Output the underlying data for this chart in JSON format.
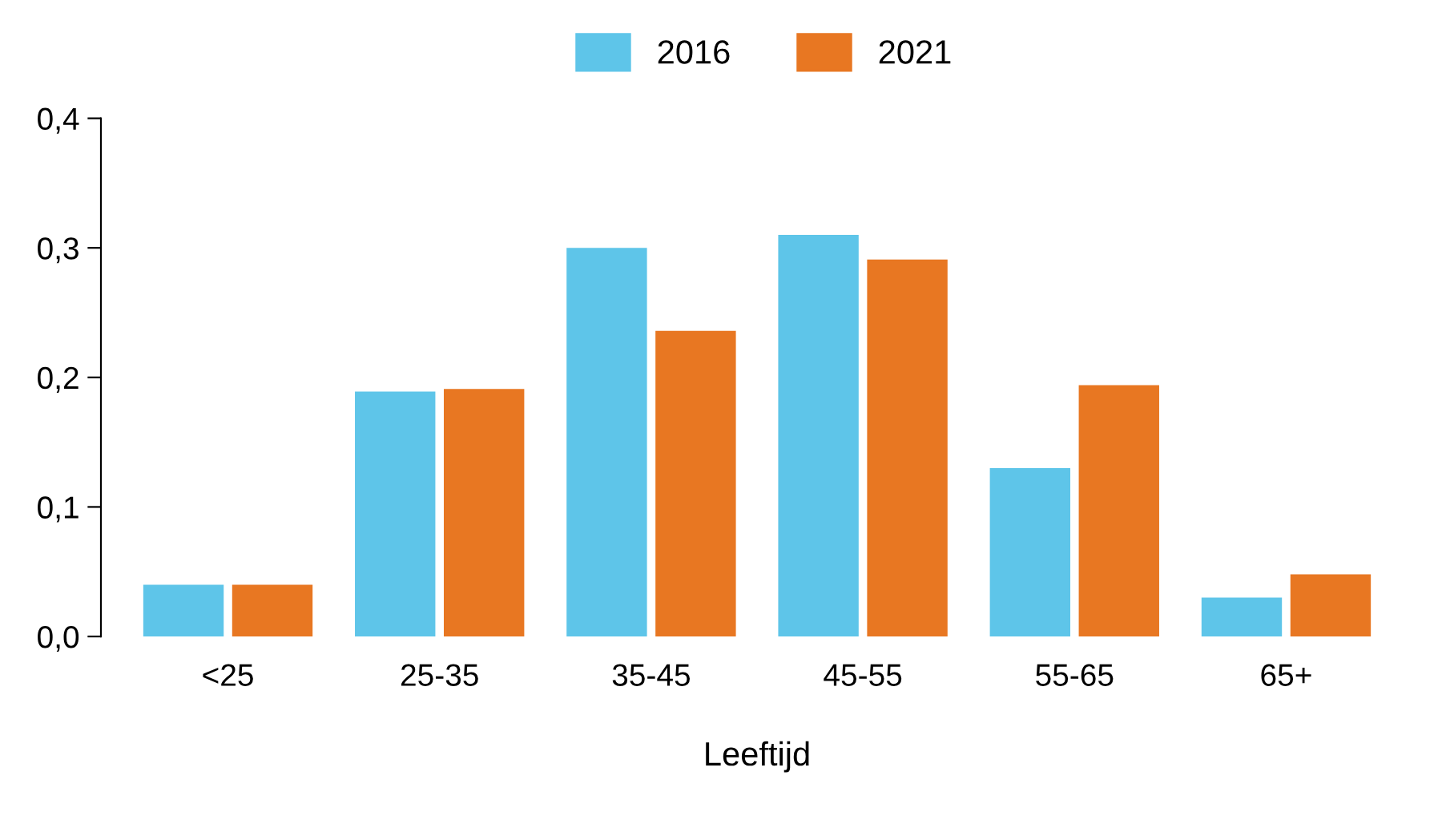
{
  "chart_data": {
    "type": "bar",
    "xlabel": "Leeftijd",
    "categories": [
      "<25",
      "25-35",
      "35-45",
      "45-55",
      "55-65",
      "65+"
    ],
    "series": [
      {
        "name": "2016",
        "color": "#5ec5e9",
        "values": [
          0.04,
          0.189,
          0.3,
          0.31,
          0.13,
          0.03
        ]
      },
      {
        "name": "2021",
        "color": "#e87722",
        "values": [
          0.04,
          0.191,
          0.236,
          0.291,
          0.194,
          0.048
        ]
      }
    ],
    "ylim": [
      0,
      0.4
    ],
    "yticks": [
      {
        "value": 0,
        "label": "0,0"
      },
      {
        "value": 0.1,
        "label": "0,1"
      },
      {
        "value": 0.2,
        "label": "0,2"
      },
      {
        "value": 0.3,
        "label": "0,3"
      },
      {
        "value": 0.4,
        "label": "0,4"
      }
    ],
    "grid": false,
    "legend": "top"
  }
}
